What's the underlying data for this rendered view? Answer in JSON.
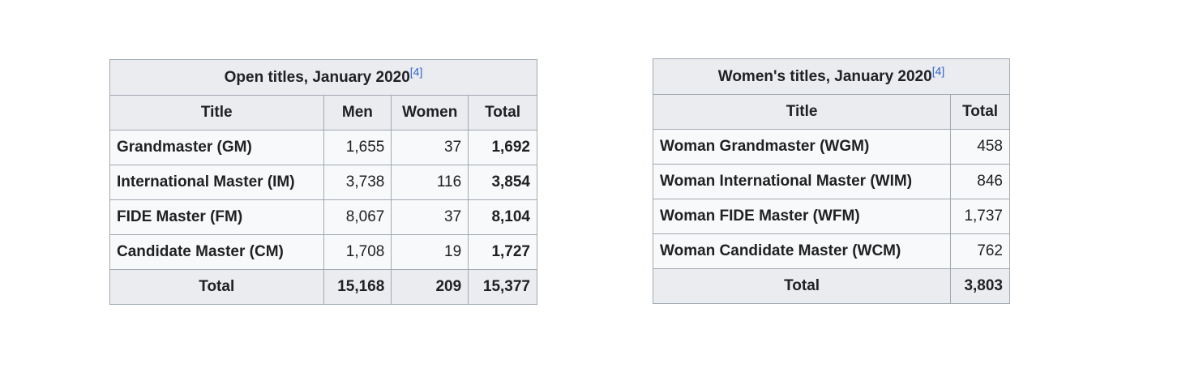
{
  "open_table": {
    "caption": "Open titles, January 2020",
    "ref": "[4]",
    "headers": [
      "Title",
      "Men",
      "Women",
      "Total"
    ],
    "rows": [
      {
        "title": "Grandmaster (GM)",
        "men": "1,655",
        "women": "37",
        "total": "1,692"
      },
      {
        "title": "International Master (IM)",
        "men": "3,738",
        "women": "116",
        "total": "3,854"
      },
      {
        "title": "FIDE Master (FM)",
        "men": "8,067",
        "women": "37",
        "total": "8,104"
      },
      {
        "title": "Candidate Master (CM)",
        "men": "1,708",
        "women": "19",
        "total": "1,727"
      }
    ],
    "total_row": {
      "label": "Total",
      "men": "15,168",
      "women": "209",
      "total": "15,377"
    }
  },
  "women_table": {
    "caption": "Women's titles, January 2020",
    "ref": "[4]",
    "headers": [
      "Title",
      "Total"
    ],
    "rows": [
      {
        "title": "Woman Grandmaster (WGM)",
        "total": "458"
      },
      {
        "title": "Woman International Master (WIM)",
        "total": "846"
      },
      {
        "title": "Woman FIDE Master (WFM)",
        "total": "1,737"
      },
      {
        "title": "Woman Candidate Master (WCM)",
        "total": "762"
      }
    ],
    "total_row": {
      "label": "Total",
      "total": "3,803"
    }
  }
}
